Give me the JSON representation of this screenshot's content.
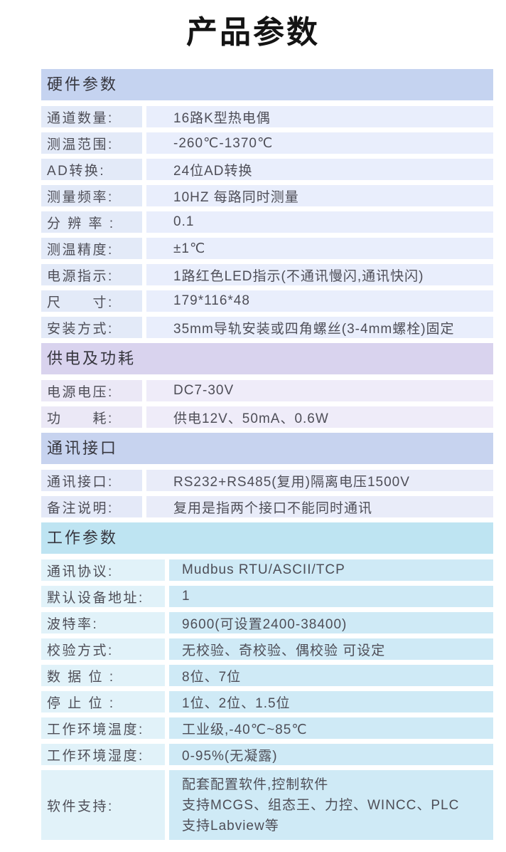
{
  "page": {
    "title": "产品参数"
  },
  "sections": [
    {
      "name": "hardware-params",
      "title": "硬件参数",
      "colors": {
        "header_bg": "#c5d3f0",
        "label_bg": "#e3eaf8",
        "value_bg": "#e9eefc"
      },
      "rows": [
        {
          "label": "通道数量:",
          "value": "16路K型热电偶"
        },
        {
          "label": "测温范围:",
          "value": "-260℃-1370℃"
        },
        {
          "label": "AD转换:",
          "value": "24位AD转换"
        },
        {
          "label": "测量频率:",
          "value": "10HZ 每路同时测量"
        },
        {
          "label": "分 辨 率 :",
          "value": "0.1"
        },
        {
          "label": "测温精度:",
          "value": "±1℃"
        },
        {
          "label": "电源指示:",
          "value": "1路红色LED指示(不通讯慢闪,通讯快闪)"
        },
        {
          "label": "尺　　寸:",
          "value": "179*116*48"
        },
        {
          "label": "安装方式:",
          "value": "35mm导轨安装或四角螺丝(3-4mm螺栓)固定"
        }
      ]
    },
    {
      "name": "power-consumption",
      "title": "供电及功耗",
      "colors": {
        "header_bg": "#d9d3ee",
        "label_bg": "#ebe8f6",
        "value_bg": "#efecf9"
      },
      "rows": [
        {
          "label": "电源电压:",
          "value": "DC7-30V"
        },
        {
          "label": "功　　耗:",
          "value": "供电12V、50mA、0.6W"
        }
      ]
    },
    {
      "name": "comm-interface",
      "title": "通讯接口",
      "colors": {
        "header_bg": "#c7d3ef",
        "label_bg": "#e4e9f8",
        "value_bg": "#e9ecf9"
      },
      "rows": [
        {
          "label": "通讯接口:",
          "value": "RS232+RS485(复用)隔离电压1500V"
        },
        {
          "label": "备注说明:",
          "value": "复用是指两个接口不能同时通讯"
        }
      ]
    },
    {
      "name": "working-params",
      "title": "工作参数",
      "colors": {
        "header_bg": "#bee4f2",
        "label_bg": "#e1f2f9",
        "value_bg": "#cfeaf6"
      },
      "rows": [
        {
          "label": "通讯协议:",
          "value": "Mudbus RTU/ASCII/TCP"
        },
        {
          "label": "默认设备地址:",
          "value": "1"
        },
        {
          "label": "波特率:",
          "value": "9600(可设置2400-38400)"
        },
        {
          "label": "校验方式:",
          "value": "无校验、奇校验、偶校验 可设定"
        },
        {
          "label": "数 据 位 :",
          "value": "8位、7位"
        },
        {
          "label": "停 止 位 :",
          "value": "1位、2位、1.5位"
        },
        {
          "label": "工作环境温度:",
          "value": "工业级,-40℃~85℃"
        },
        {
          "label": "工作环境湿度:",
          "value": "0-95%(无凝露)"
        },
        {
          "label": "软件支持:",
          "lines": [
            "配套配置软件,控制软件",
            "支持MCGS、组态王、力控、WINCC、PLC",
            "支持Labview等"
          ]
        }
      ]
    }
  ]
}
